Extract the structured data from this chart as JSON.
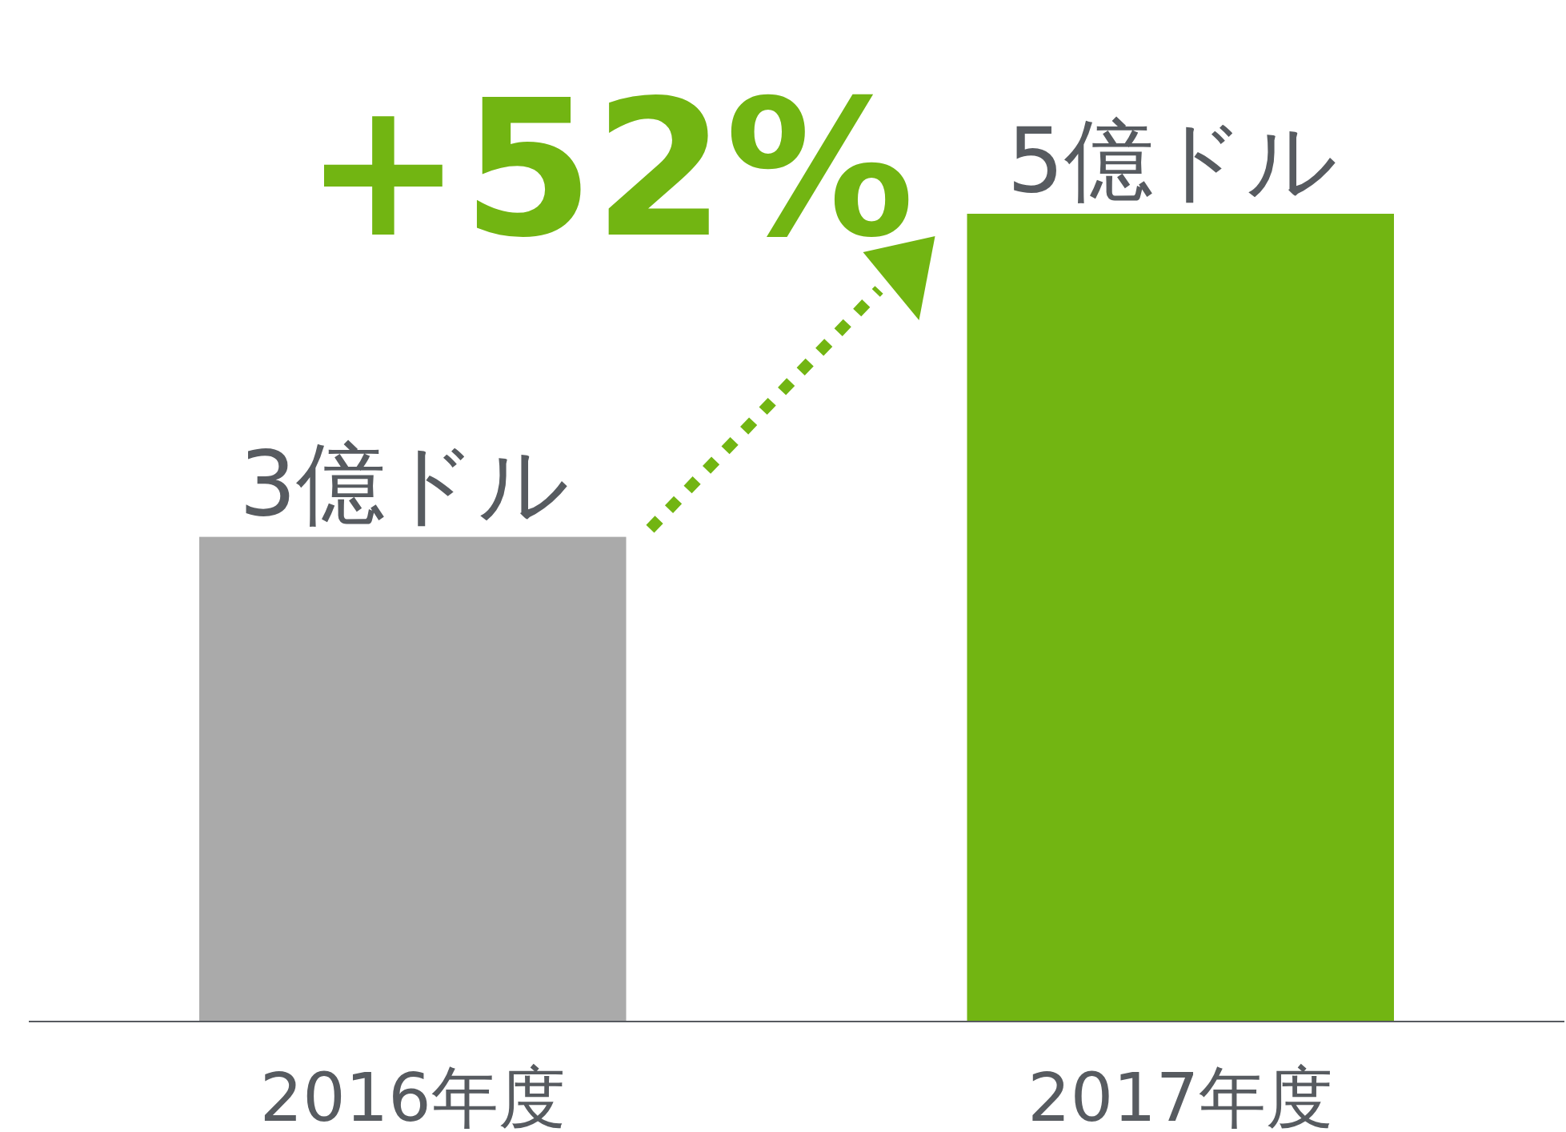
{
  "chart_data": {
    "type": "bar",
    "categories": [
      "2016年度",
      "2017年度"
    ],
    "values": [
      3,
      5
    ],
    "colors": [
      "#aaaaaa",
      "#72b512"
    ],
    "value_labels": [
      "3億ドル",
      "5億ドル"
    ],
    "annotations": [
      "+52%"
    ]
  }
}
